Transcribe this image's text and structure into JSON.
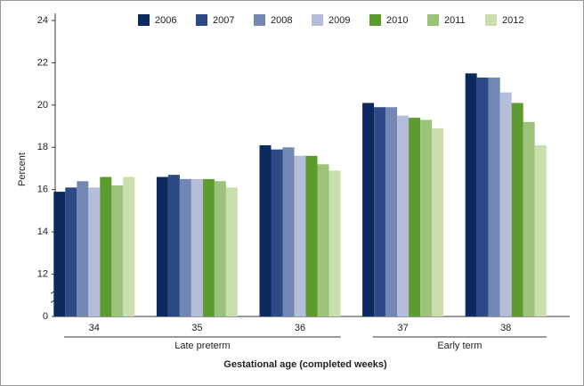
{
  "chart_data": {
    "type": "bar",
    "categories": [
      "34",
      "35",
      "36",
      "37",
      "38"
    ],
    "groups": [
      {
        "label": "Late preterm",
        "members": [
          "34",
          "35",
          "36"
        ]
      },
      {
        "label": "Early term",
        "members": [
          "37",
          "38"
        ]
      }
    ],
    "series": [
      {
        "name": "2006",
        "color": "#0d2a5e",
        "values": [
          15.9,
          16.6,
          18.1,
          20.1,
          21.5
        ]
      },
      {
        "name": "2007",
        "color": "#2c4a86",
        "values": [
          16.1,
          16.7,
          17.9,
          19.9,
          21.3
        ]
      },
      {
        "name": "2008",
        "color": "#7287b4",
        "values": [
          16.4,
          16.5,
          18.0,
          19.9,
          21.3
        ]
      },
      {
        "name": "2009",
        "color": "#b5bed9",
        "values": [
          16.1,
          16.5,
          17.6,
          19.5,
          20.6
        ]
      },
      {
        "name": "2010",
        "color": "#5e9b2e",
        "values": [
          16.6,
          16.5,
          17.6,
          19.4,
          20.1
        ]
      },
      {
        "name": "2011",
        "color": "#9dc27a",
        "values": [
          16.2,
          16.4,
          17.2,
          19.3,
          19.2
        ]
      },
      {
        "name": "2012",
        "color": "#c9dfae",
        "values": [
          16.6,
          16.1,
          16.9,
          18.9,
          18.1
        ]
      }
    ],
    "ylim": [
      0,
      24
    ],
    "yticks": [
      0,
      12,
      14,
      16,
      18,
      20,
      22,
      24
    ],
    "axis_break": true,
    "y_label": "Percent",
    "x_label": "Gestational age (completed weeks)",
    "legend": "top"
  }
}
